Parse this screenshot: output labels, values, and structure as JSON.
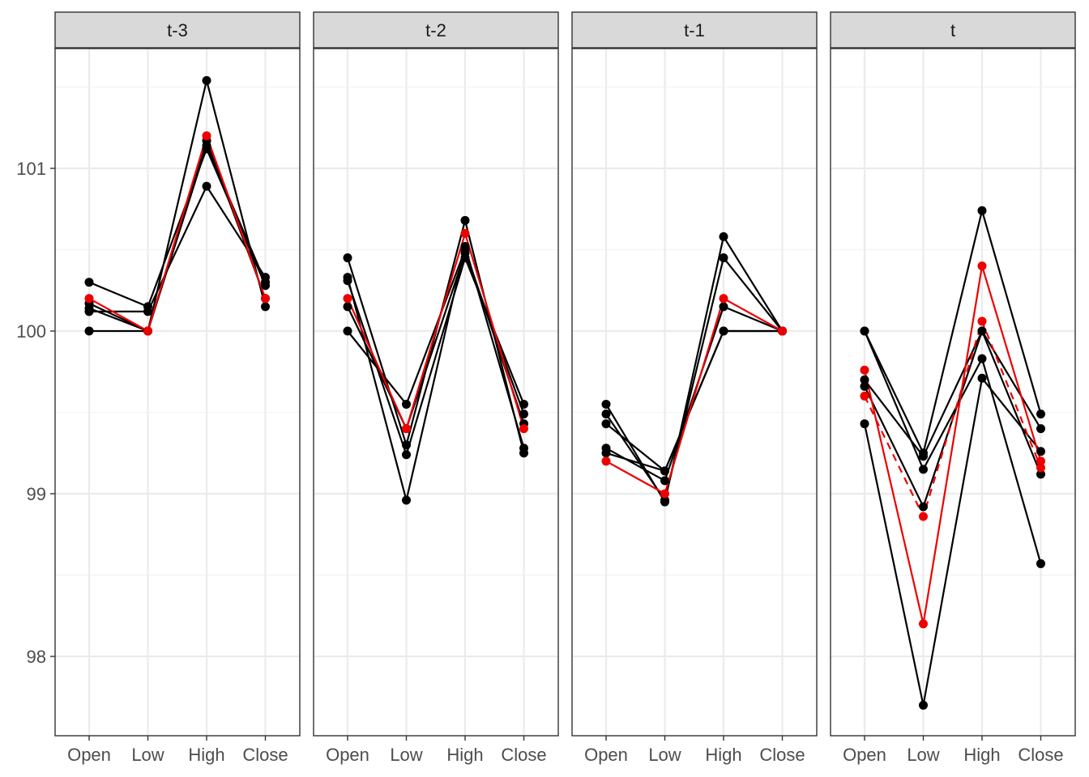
{
  "chart_data": {
    "type": "line",
    "title": "",
    "xlabel": "",
    "ylabel": "",
    "categories": [
      "Open",
      "Low",
      "High",
      "Close"
    ],
    "ylim": [
      97.5,
      101.75
    ],
    "yticks": [
      98,
      99,
      100,
      101
    ],
    "grid": true,
    "legend": "none",
    "colors": {
      "black": "#000000",
      "red": "#ee0000",
      "strip": "#d9d9d9",
      "grid_major": "#ebebeb",
      "grid_minor": "#f2f2f2"
    },
    "panels": [
      {
        "label": "t-3",
        "series": [
          {
            "color": "black",
            "dashed": false,
            "values": [
              100.0,
              100.0,
              101.54,
              100.15
            ]
          },
          {
            "color": "black",
            "dashed": false,
            "values": [
              100.3,
              100.15,
              101.12,
              100.28
            ]
          },
          {
            "color": "black",
            "dashed": false,
            "values": [
              100.12,
              100.12,
              100.89,
              100.33
            ]
          },
          {
            "color": "black",
            "dashed": false,
            "values": [
              100.17,
              100.0,
              101.14,
              100.3
            ]
          },
          {
            "color": "black",
            "dashed": false,
            "values": [
              100.14,
              100.0,
              101.17,
              100.2
            ]
          },
          {
            "color": "red",
            "dashed": false,
            "values": [
              100.2,
              100.0,
              101.2,
              100.2
            ]
          }
        ]
      },
      {
        "label": "t-2",
        "series": [
          {
            "color": "black",
            "dashed": false,
            "values": [
              100.45,
              99.3,
              100.68,
              99.25
            ]
          },
          {
            "color": "black",
            "dashed": false,
            "values": [
              100.33,
              98.96,
              100.52,
              99.28
            ]
          },
          {
            "color": "black",
            "dashed": false,
            "values": [
              100.31,
              99.24,
              100.45,
              99.55
            ]
          },
          {
            "color": "black",
            "dashed": false,
            "values": [
              100.15,
              99.4,
              100.48,
              99.49
            ]
          },
          {
            "color": "black",
            "dashed": false,
            "values": [
              100.0,
              99.55,
              100.5,
              99.43
            ]
          },
          {
            "color": "red",
            "dashed": false,
            "values": [
              100.2,
              99.4,
              100.6,
              99.4
            ]
          }
        ]
      },
      {
        "label": "t-1",
        "series": [
          {
            "color": "black",
            "dashed": false,
            "values": [
              99.55,
              98.95,
              100.58,
              100.0
            ]
          },
          {
            "color": "black",
            "dashed": false,
            "values": [
              99.49,
              98.96,
              100.45,
              100.0
            ]
          },
          {
            "color": "black",
            "dashed": false,
            "values": [
              99.43,
              99.14,
              100.0,
              100.0
            ]
          },
          {
            "color": "black",
            "dashed": false,
            "values": [
              99.28,
              99.08,
              100.15,
              100.0
            ]
          },
          {
            "color": "black",
            "dashed": false,
            "values": [
              99.25,
              99.14,
              100.0,
              100.0
            ]
          },
          {
            "color": "red",
            "dashed": false,
            "values": [
              99.2,
              99.0,
              100.2,
              100.0
            ]
          }
        ]
      },
      {
        "label": "t",
        "series": [
          {
            "color": "black",
            "dashed": false,
            "values": [
              100.0,
              99.25,
              100.74,
              99.49
            ]
          },
          {
            "color": "black",
            "dashed": false,
            "values": [
              100.0,
              99.15,
              99.83,
              98.57
            ]
          },
          {
            "color": "black",
            "dashed": false,
            "values": [
              99.43,
              97.7,
              99.71,
              99.26
            ]
          },
          {
            "color": "black",
            "dashed": false,
            "values": [
              99.7,
              99.23,
              100.0,
              99.12
            ]
          },
          {
            "color": "black",
            "dashed": false,
            "values": [
              99.66,
              98.92,
              100.0,
              99.4
            ]
          },
          {
            "color": "red",
            "dashed": false,
            "values": [
              99.76,
              98.2,
              100.4,
              99.2
            ]
          },
          {
            "color": "red",
            "dashed": true,
            "values": [
              99.6,
              98.86,
              100.06,
              99.16
            ]
          }
        ]
      }
    ]
  }
}
